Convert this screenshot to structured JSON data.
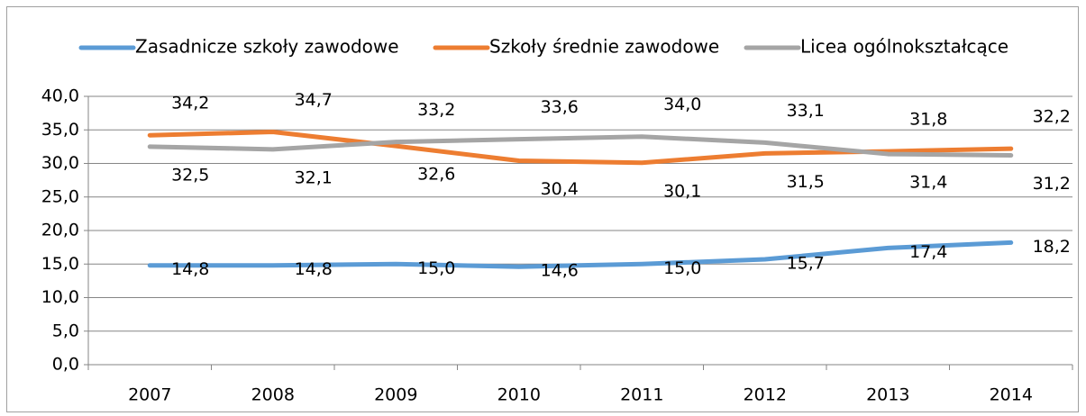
{
  "chart_data": {
    "type": "line",
    "categories": [
      "2007",
      "2008",
      "2009",
      "2010",
      "2011",
      "2012",
      "2013",
      "2014"
    ],
    "series": [
      {
        "name": "Zasadnicze szkoły zawodowe",
        "color": "#5b9bd5",
        "values": [
          14.8,
          14.8,
          15.0,
          14.6,
          15.0,
          15.7,
          17.4,
          18.2
        ],
        "value_labels": [
          "14,8",
          "14,8",
          "15,0",
          "14,6",
          "15,0",
          "15,7",
          "17,4",
          "18,2"
        ]
      },
      {
        "name": "Szkoły średnie zawodowe",
        "color": "#ed7d31",
        "values": [
          34.2,
          34.7,
          32.6,
          30.4,
          30.1,
          31.5,
          31.8,
          32.2
        ],
        "value_labels": [
          "34,2",
          "34,7",
          "32,6",
          "30,4",
          "30,1",
          "31,5",
          "31,8",
          "32,2"
        ]
      },
      {
        "name": "Licea ogólnokształcące",
        "color": "#a5a5a5",
        "values": [
          32.5,
          32.1,
          33.2,
          33.6,
          34.0,
          33.1,
          31.4,
          31.2
        ],
        "value_labels": [
          "32,5",
          "32,1",
          "33,2",
          "33,6",
          "34,0",
          "33,1",
          "31,4",
          "31,2"
        ]
      }
    ],
    "ylim": [
      0,
      40
    ],
    "yticks": [
      {
        "value": 0,
        "label": "0,0"
      },
      {
        "value": 5,
        "label": "5,0"
      },
      {
        "value": 10,
        "label": "10,0"
      },
      {
        "value": 15,
        "label": "15,0"
      },
      {
        "value": 20,
        "label": "20,0"
      },
      {
        "value": 25,
        "label": "25,0"
      },
      {
        "value": 30,
        "label": "30,0"
      },
      {
        "value": 35,
        "label": "35,0"
      },
      {
        "value": 40,
        "label": "40,0"
      }
    ],
    "grid": true,
    "legend": "top"
  }
}
